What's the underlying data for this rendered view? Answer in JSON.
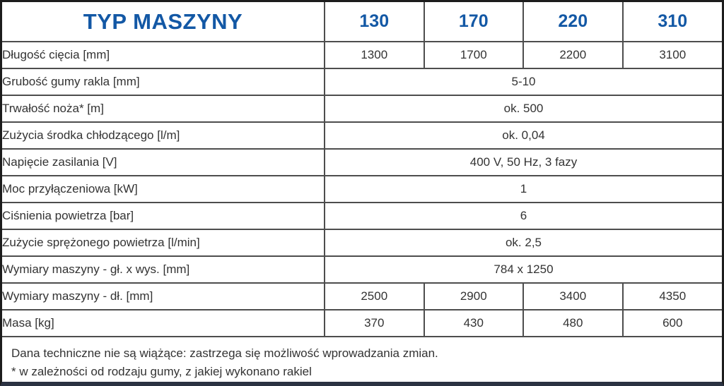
{
  "accent_color": "#1358a5",
  "border_color": "#4d4d4d",
  "bottom_bar_color": "#2b3242",
  "table": {
    "header": {
      "title": "TYP MASZYNY",
      "columns": [
        "130",
        "170",
        "220",
        "310"
      ]
    },
    "rows": [
      {
        "label": "Długość cięcia [mm]",
        "values": [
          "1300",
          "1700",
          "2200",
          "3100"
        ]
      },
      {
        "label": "Grubość gumy rakla [mm]",
        "span": "5-10"
      },
      {
        "label": "Trwałość noża* [m]",
        "span": "ok. 500"
      },
      {
        "label": "Zużycia środka chłodzącego [l/m]",
        "span": "ok. 0,04"
      },
      {
        "label": "Napięcie zasilania [V]",
        "span": "400 V, 50 Hz, 3 fazy"
      },
      {
        "label": "Moc przyłączeniowa [kW]",
        "span": "1"
      },
      {
        "label": "Ciśnienia powietrza [bar]",
        "span": "6"
      },
      {
        "label": "Zużycie sprężonego powietrza [l/min]",
        "span": "ok. 2,5"
      },
      {
        "label": "Wymiary maszyny - gł. x wys. [mm]",
        "span": "784 x 1250"
      },
      {
        "label": "Wymiary maszyny - dł. [mm]",
        "values": [
          "2500",
          "2900",
          "3400",
          "4350"
        ]
      },
      {
        "label": "Masa [kg]",
        "values": [
          "370",
          "430",
          "480",
          "600"
        ]
      }
    ]
  },
  "footnotes": [
    "Dana techniczne nie są wiążące: zastrzega się możliwość wprowadzania zmian.",
    "* w zależności od rodzaju gumy, z jakiej wykonano rakiel"
  ]
}
